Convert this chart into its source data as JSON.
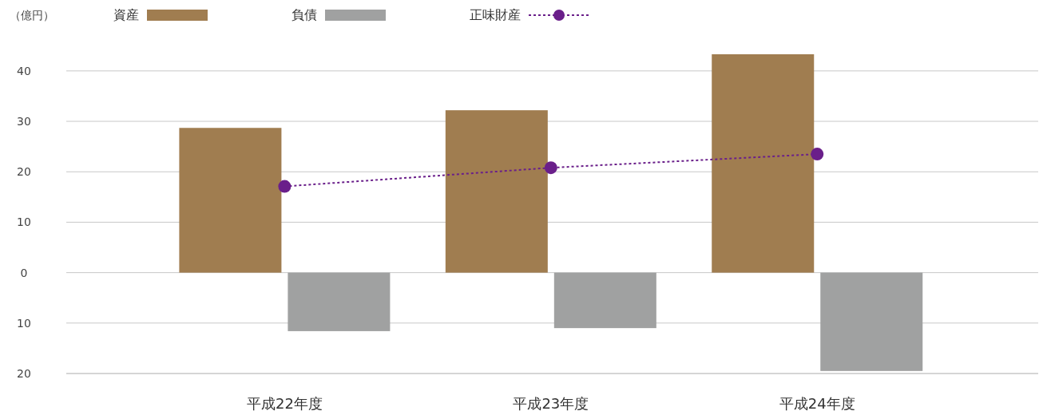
{
  "chart_data": {
    "type": "bar",
    "ylabel": "（億円）",
    "categories": [
      "平成22年度",
      "平成23年度",
      "平成24年度"
    ],
    "series": [
      {
        "name": "資産",
        "color": "#a07d50",
        "values": [
          28.7,
          32.2,
          43.3
        ]
      },
      {
        "name": "負債",
        "color": "#a0a1a1",
        "values": [
          -11.6,
          -11.0,
          -19.5
        ]
      },
      {
        "name": "正味財産",
        "type": "line",
        "color": "#6a1f8a",
        "values": [
          17.1,
          20.8,
          23.5
        ],
        "marker": "circle",
        "line_style": "dotted"
      }
    ],
    "ylim": [
      -20,
      43.3
    ],
    "yticks": [
      {
        "value": -20,
        "label": "20"
      },
      {
        "value": -10,
        "label": "10"
      },
      0,
      10,
      20,
      30,
      40
    ],
    "grid": "y",
    "legend": "top"
  }
}
